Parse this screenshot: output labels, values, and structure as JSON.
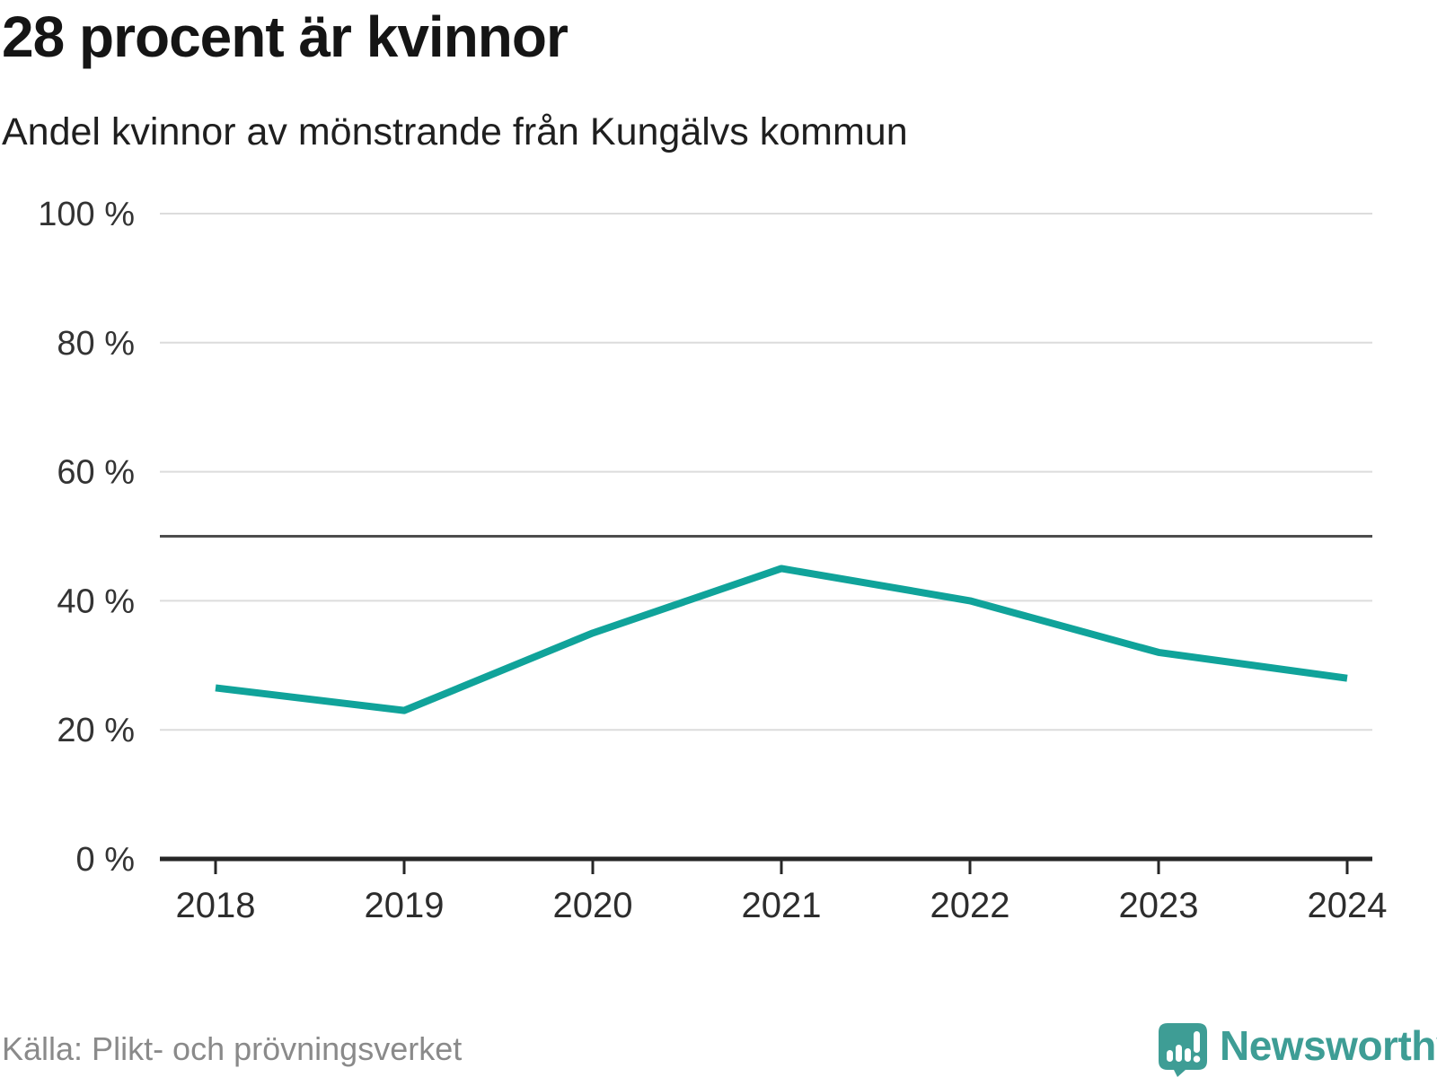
{
  "header": {
    "title": "28 procent är kvinnor",
    "subtitle": "Andel kvinnor av mönstrande från Kungälvs kommun"
  },
  "footer": {
    "source": "Källa: Plikt- och prövningsverket",
    "brand_name": "Newsworthy"
  },
  "colors": {
    "line": "#10a39a",
    "reference_line": "#4d4d4d",
    "grid": "#dcdcdc",
    "axis": "#262626",
    "tick_label": "#333333",
    "source_text": "#8a8a8a",
    "brand_teal": "#3e9d95"
  },
  "chart_data": {
    "type": "line",
    "x": [
      2018,
      2019,
      2020,
      2021,
      2022,
      2023,
      2024
    ],
    "series": [
      {
        "name": "Andel kvinnor av mönstrande",
        "values": [
          26.5,
          23,
          35,
          45,
          40,
          32,
          28
        ]
      }
    ],
    "unit": "%",
    "ylim": [
      0,
      100
    ],
    "yticks": [
      0,
      20,
      40,
      60,
      80,
      100
    ],
    "ytick_suffix": " %",
    "reference_line": 50,
    "grid": "horizontal",
    "legend": "none",
    "title": "28 procent är kvinnor",
    "xlabel": "",
    "ylabel": ""
  }
}
